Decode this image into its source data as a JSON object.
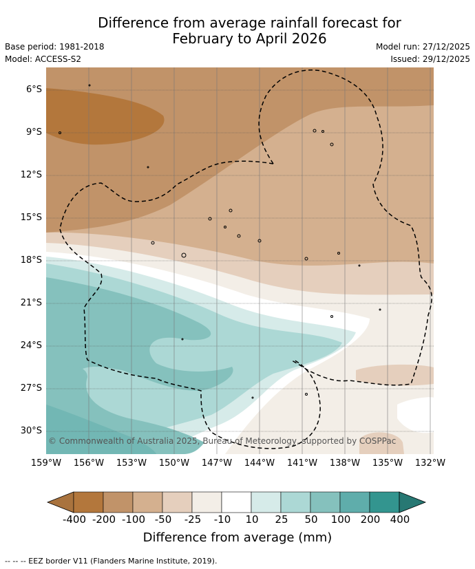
{
  "title_line1": "Difference from average rainfall forecast for",
  "title_line2": "February to April 2026",
  "base_period": "Base period: 1981-2018",
  "model": "Model: ACCESS-S2",
  "model_run": "Model run: 27/12/2025",
  "issued": "Issued: 29/12/2025",
  "copyright": "© Commonwealth of Australia 2025, Bureau of Meteorology, supported by COSPPac",
  "lat_labels": [
    "6°S",
    "9°S",
    "12°S",
    "15°S",
    "18°S",
    "21°S",
    "24°S",
    "27°S",
    "30°S"
  ],
  "lon_labels": [
    "159°W",
    "156°W",
    "153°W",
    "150°W",
    "147°W",
    "144°W",
    "141°W",
    "138°W",
    "135°W",
    "132°W"
  ],
  "colorbar": {
    "labels": [
      "-400",
      "-200",
      "-100",
      "-50",
      "-25",
      "-10",
      "10",
      "25",
      "50",
      "100",
      "200",
      "400"
    ],
    "colors": [
      "#a9733e",
      "#b3773c",
      "#c19369",
      "#d4b08f",
      "#e5cfbd",
      "#f3eee7",
      "#ffffff",
      "#d6ebe9",
      "#acd8d5",
      "#85c1bd",
      "#5fadab",
      "#33958f",
      "#277873"
    ],
    "title": "Difference from average (mm)"
  },
  "footer": "--  --  -- EEZ border V11 (Flanders Marine Institute, 2019)."
}
